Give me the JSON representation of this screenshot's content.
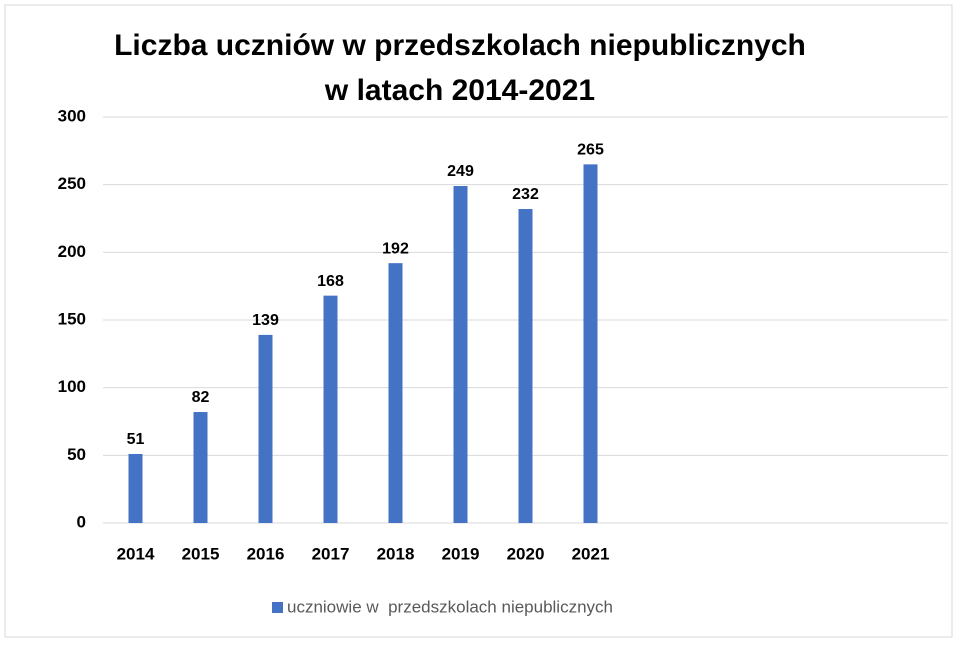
{
  "chart_data": {
    "type": "bar",
    "title": [
      "Liczba uczniów w przedszkolach niepublicznych",
      "w latach 2014-2021"
    ],
    "categories": [
      "2014",
      "2015",
      "2016",
      "2017",
      "2018",
      "2019",
      "2020",
      "2021",
      null,
      null,
      null,
      null,
      null
    ],
    "series": [
      {
        "name": "uczniowie w  przedszkolach niepublicznych",
        "color": "#4472c4",
        "values": [
          51,
          82,
          139,
          168,
          192,
          249,
          232,
          265,
          null,
          null,
          null,
          null,
          null
        ]
      }
    ],
    "ylim": [
      0,
      300
    ],
    "yticks": [
      0,
      50,
      100,
      150,
      200,
      250,
      300
    ],
    "grid": true,
    "legend": "bottom"
  }
}
